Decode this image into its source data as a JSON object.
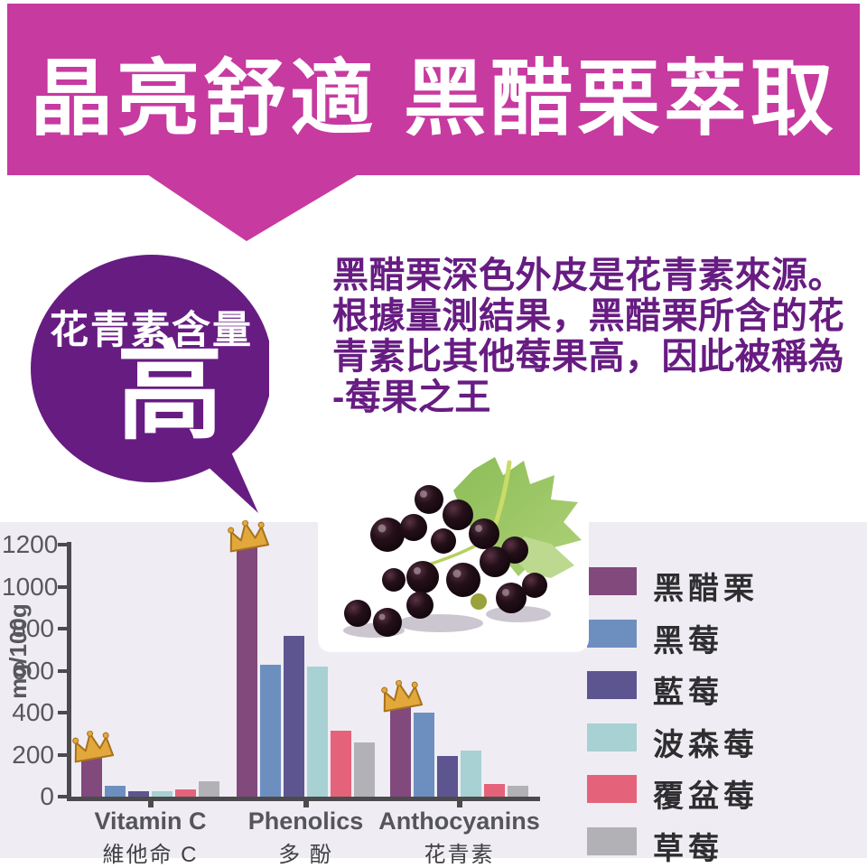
{
  "header": {
    "title": "晶亮舒適 黑醋栗萃取"
  },
  "bubble": {
    "title": "花青素含量",
    "emphasis": "高"
  },
  "intro": {
    "lines": [
      "黑醋栗深色外皮是花青素來源。",
      "根據量測結果，黑醋栗所含的花",
      "青素比其他莓果高，因此被稱為",
      "-莓果之王"
    ]
  },
  "colors": {
    "banner": "#c73aa0",
    "bubble": "#671c82",
    "panel": "#efedf3",
    "axis": "#4b4b4e",
    "crown": "#e2a83b"
  },
  "chart_data": {
    "type": "bar",
    "title": "",
    "xlabel": "",
    "ylabel": "mg/100g",
    "ylim": [
      0,
      1200
    ],
    "yticks": [
      0,
      200,
      400,
      600,
      800,
      1000,
      1200
    ],
    "grid": false,
    "legend_position": "right",
    "categories": [
      {
        "en": "Vitamin C",
        "zh": "維他命 C"
      },
      {
        "en": "Phenolics",
        "zh": "多 酚"
      },
      {
        "en": "Anthocyanins",
        "zh": "花青素"
      }
    ],
    "series": [
      {
        "name": "黑醋栗",
        "color": "#82497c",
        "crowned": true,
        "values": [
          190,
          1190,
          430
        ]
      },
      {
        "name": "黑莓",
        "color": "#6d8fc0",
        "crowned": false,
        "values": [
          50,
          630,
          400
        ]
      },
      {
        "name": "藍莓",
        "color": "#5d5590",
        "crowned": false,
        "values": [
          25,
          765,
          195
        ]
      },
      {
        "name": "波森莓",
        "color": "#a7d1d3",
        "crowned": false,
        "values": [
          25,
          620,
          220
        ]
      },
      {
        "name": "覆盆莓",
        "color": "#e4637a",
        "crowned": false,
        "values": [
          35,
          315,
          60
        ]
      },
      {
        "name": "草莓",
        "color": "#b2b1b5",
        "crowned": false,
        "values": [
          75,
          260,
          50
        ]
      }
    ]
  }
}
